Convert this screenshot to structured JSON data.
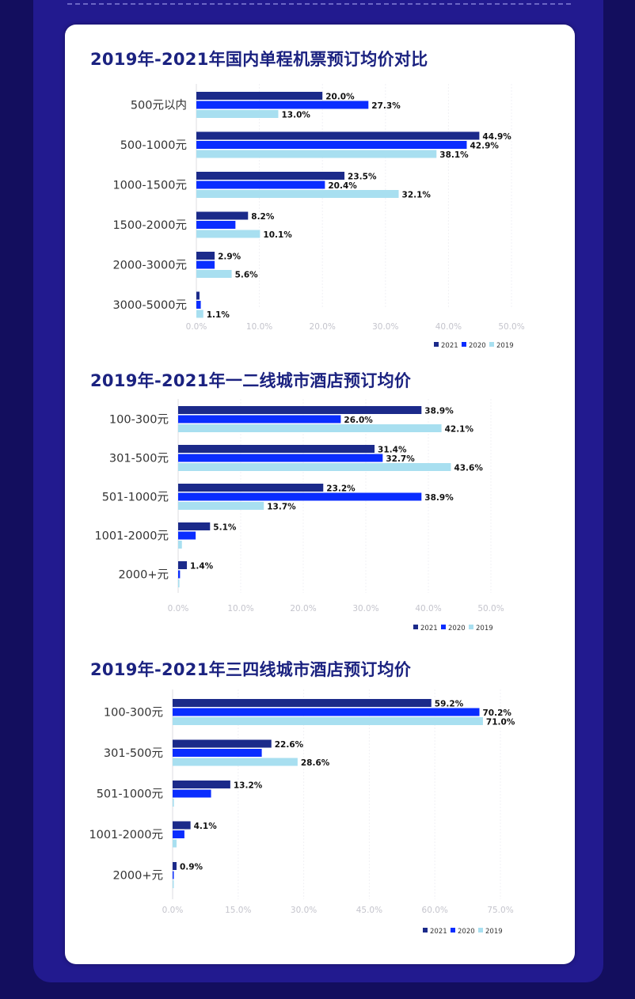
{
  "colors": {
    "s2021": "#1b2a8a",
    "s2020": "#0a2dff",
    "s2019": "#a8dff0"
  },
  "chart_data": [
    {
      "type": "bar",
      "orientation": "horizontal",
      "title": "2019年-2021年国内单程机票预订均价对比",
      "categories": [
        "500元以内",
        "500-1000元",
        "1000-1500元",
        "1500-2000元",
        "2000-3000元",
        "3000-5000元"
      ],
      "series": [
        {
          "name": "2021",
          "values": [
            20.0,
            44.9,
            23.5,
            8.2,
            2.9,
            0.5
          ],
          "labels": [
            "20.0%",
            "44.9%",
            "23.5%",
            "8.2%",
            "2.9%",
            null
          ]
        },
        {
          "name": "2020",
          "values": [
            27.3,
            42.9,
            20.4,
            6.2,
            2.9,
            0.7
          ],
          "labels": [
            "27.3%",
            "42.9%",
            "20.4%",
            null,
            null,
            null
          ]
        },
        {
          "name": "2019",
          "values": [
            13.0,
            38.1,
            32.1,
            10.1,
            5.6,
            1.1
          ],
          "labels": [
            "13.0%",
            "38.1%",
            "32.1%",
            "10.1%",
            "5.6%",
            "1.1%"
          ]
        }
      ],
      "xlim": [
        0,
        50
      ],
      "xticks": [
        "0.0%",
        "10.0%",
        "20.0%",
        "30.0%",
        "40.0%",
        "50.0%"
      ],
      "legend": "bottom-right"
    },
    {
      "type": "bar",
      "orientation": "horizontal",
      "title": "2019年-2021年一二线城市酒店预订均价",
      "categories": [
        "100-300元",
        "301-500元",
        "501-1000元",
        "1001-2000元",
        "2000+元"
      ],
      "series": [
        {
          "name": "2021",
          "values": [
            38.9,
            31.4,
            23.2,
            5.1,
            1.4
          ],
          "labels": [
            "38.9%",
            "31.4%",
            "23.2%",
            "5.1%",
            "1.4%"
          ]
        },
        {
          "name": "2020",
          "values": [
            26.0,
            32.7,
            38.9,
            2.8,
            0.3
          ],
          "labels": [
            "26.0%",
            "32.7%",
            "38.9%",
            null,
            null
          ]
        },
        {
          "name": "2019",
          "values": [
            42.1,
            43.6,
            13.7,
            0.6,
            0.2
          ],
          "labels": [
            "42.1%",
            "43.6%",
            "13.7%",
            null,
            null
          ]
        }
      ],
      "xlim": [
        0,
        50
      ],
      "xticks": [
        "0.0%",
        "10.0%",
        "20.0%",
        "30.0%",
        "40.0%",
        "50.0%"
      ],
      "legend": "bottom-right"
    },
    {
      "type": "bar",
      "orientation": "horizontal",
      "title": "2019年-2021年三四线城市酒店预订均价",
      "categories": [
        "100-300元",
        "301-500元",
        "501-1000元",
        "1001-2000元",
        "2000+元"
      ],
      "series": [
        {
          "name": "2021",
          "values": [
            59.2,
            22.6,
            13.2,
            4.1,
            0.9
          ],
          "labels": [
            "59.2%",
            "22.6%",
            "13.2%",
            "4.1%",
            "0.9%"
          ]
        },
        {
          "name": "2020",
          "values": [
            70.2,
            20.4,
            8.8,
            2.7,
            0.2
          ],
          "labels": [
            "70.2%",
            null,
            null,
            null,
            null
          ]
        },
        {
          "name": "2019",
          "values": [
            71.0,
            28.6,
            0.3,
            0.9,
            0.1
          ],
          "labels": [
            "71.0%",
            "28.6%",
            null,
            null,
            null
          ]
        }
      ],
      "xlim": [
        0,
        75
      ],
      "xticks": [
        "0.0%",
        "15.0%",
        "30.0%",
        "45.0%",
        "60.0%",
        "75.0%"
      ],
      "legend": "bottom-right"
    }
  ]
}
